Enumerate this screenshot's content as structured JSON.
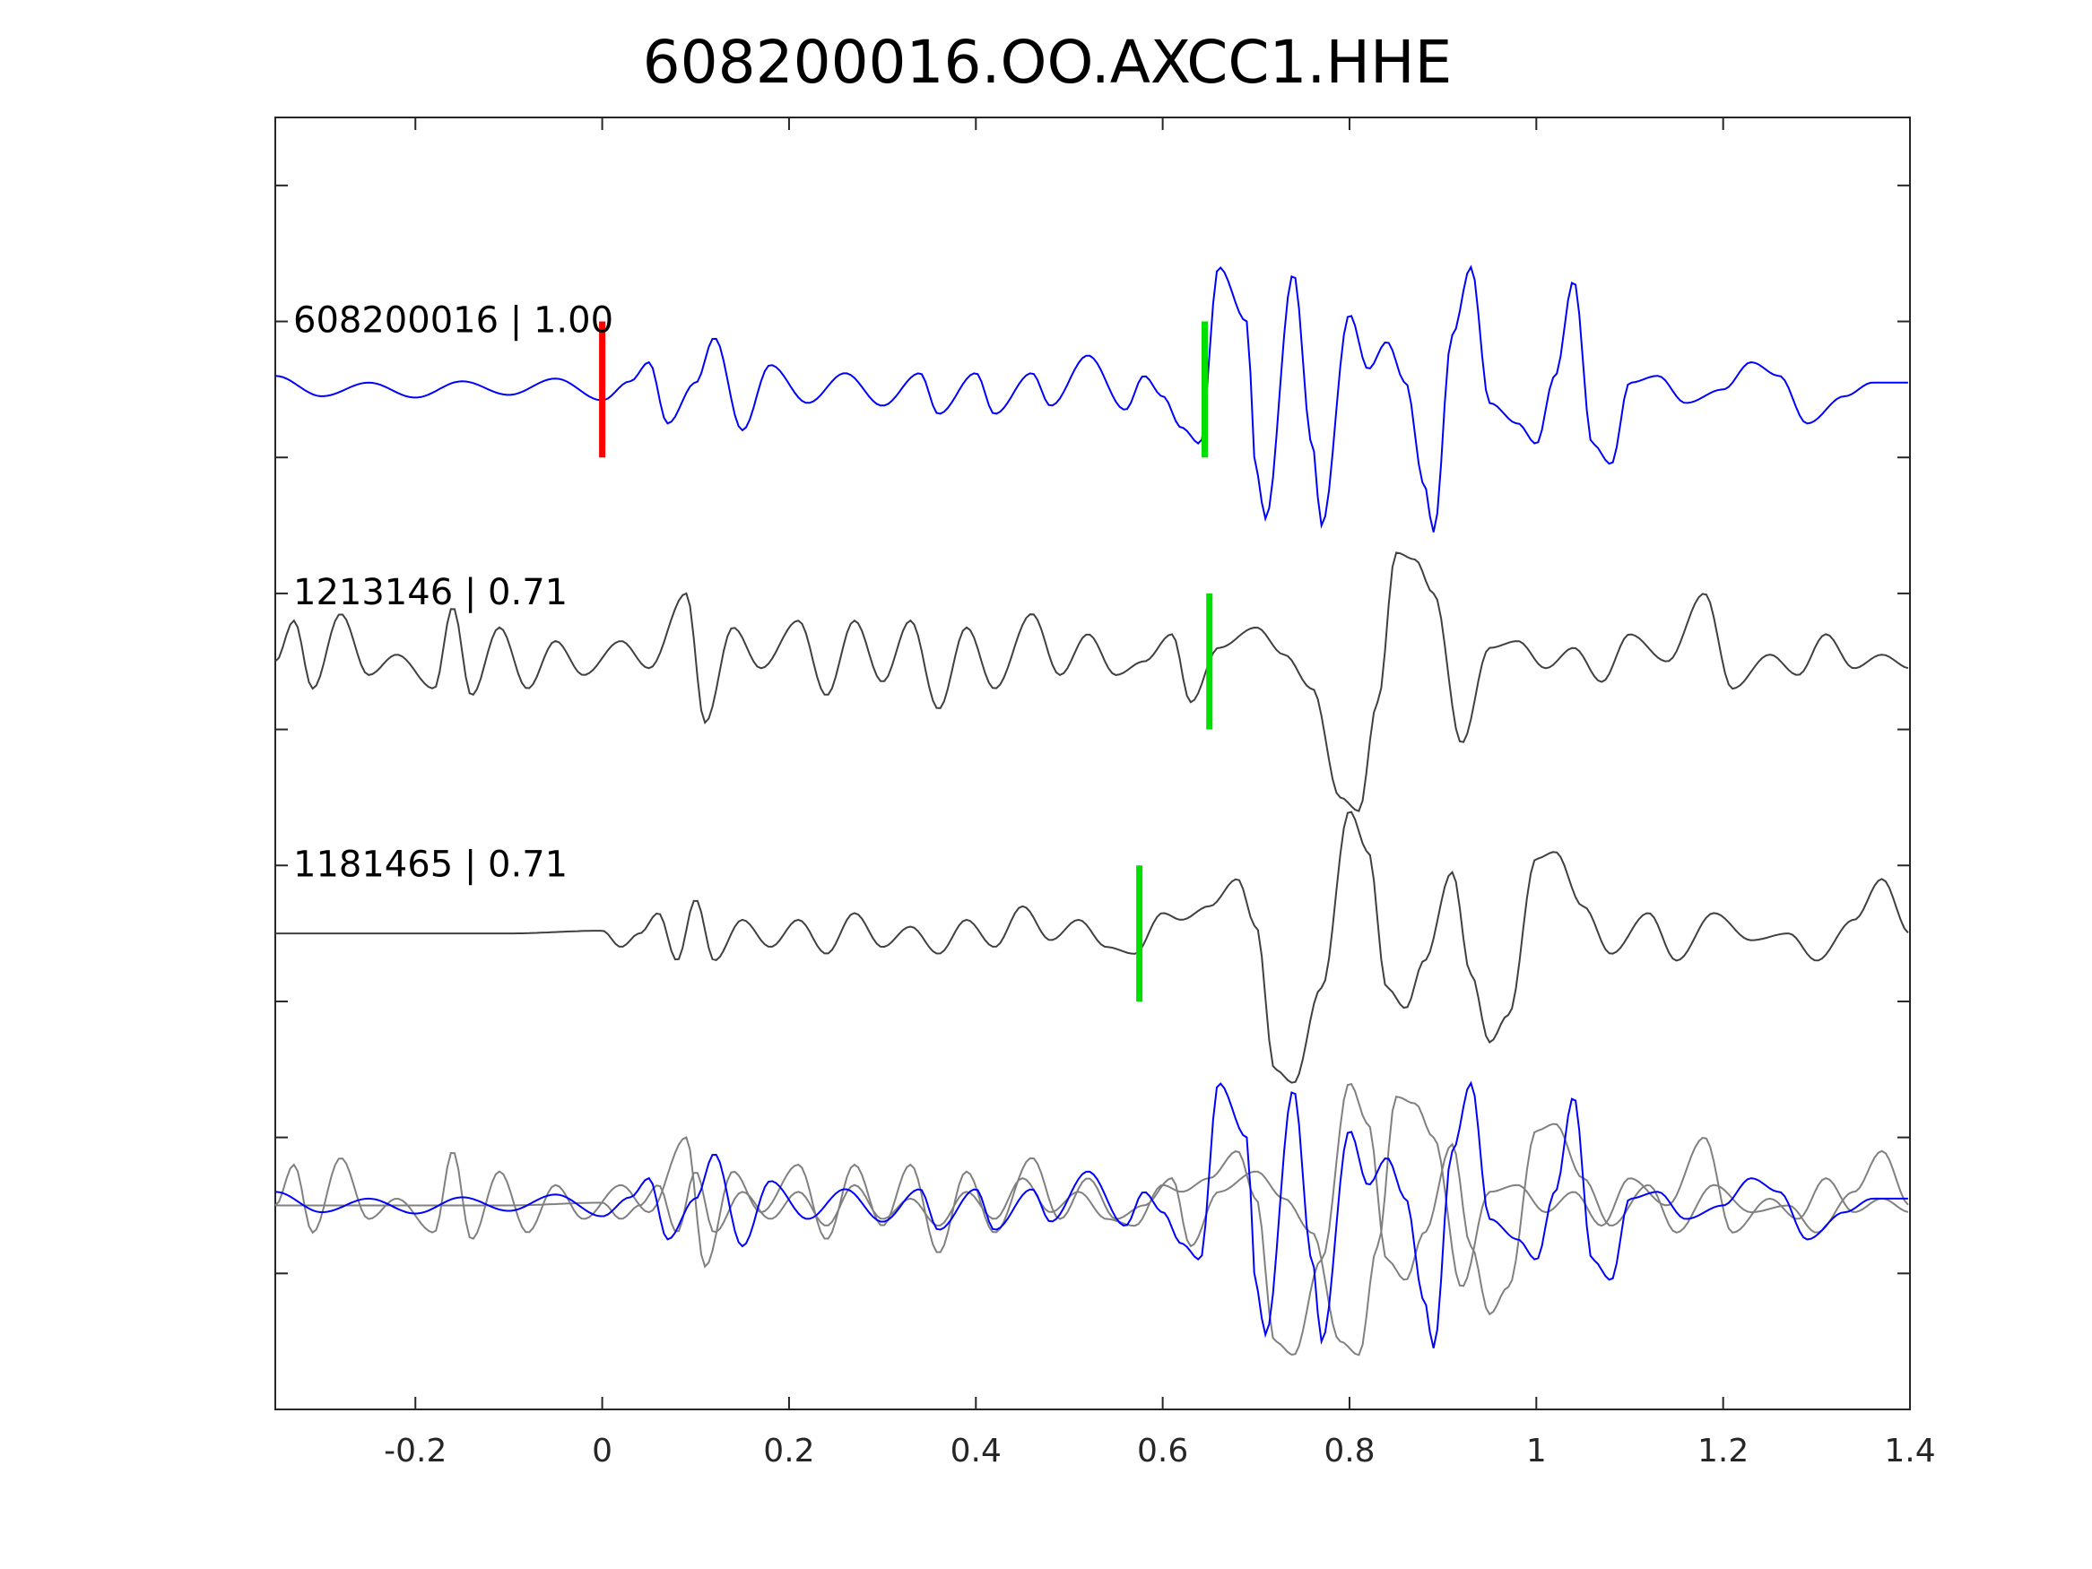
{
  "chart_data": {
    "type": "line",
    "title": "608200016.OO.AXCC1.HHE",
    "xlabel": "",
    "ylabel": "",
    "xlim": [
      -0.35,
      1.4
    ],
    "xticks": [
      -0.2,
      0,
      0.2,
      0.4,
      0.6,
      0.8,
      1,
      1.2,
      1.4
    ],
    "xtick_labels": [
      "-0.2",
      "0",
      "0.2",
      "0.4",
      "0.6",
      "0.8",
      "1",
      "1.2",
      "1.4"
    ],
    "ylim": [
      -0.5,
      9
    ],
    "yticks": [
      0.5,
      1.5,
      2.5,
      3.5,
      4.5,
      5.5,
      6.5,
      7.5,
      8.5
    ],
    "grid": false,
    "colors": {
      "template": "#0000ff",
      "match": "#404040",
      "overlay_match": "#808080",
      "origin_pick": "#ff0000",
      "phase_pick": "#00e000"
    },
    "traces": [
      {
        "label": "608200016 | 1.00",
        "offset": 7,
        "color": "template",
        "picks": [
          {
            "x": 0.0,
            "color": "origin_pick"
          },
          {
            "x": 0.645,
            "color": "phase_pick"
          }
        ],
        "points": [
          [
            -0.35,
            0.1
          ],
          [
            -0.3,
            -0.05
          ],
          [
            -0.25,
            0.05
          ],
          [
            -0.2,
            -0.06
          ],
          [
            -0.15,
            0.06
          ],
          [
            -0.1,
            -0.04
          ],
          [
            -0.05,
            0.08
          ],
          [
            0.0,
            -0.08
          ],
          [
            0.03,
            0.06
          ],
          [
            0.05,
            0.2
          ],
          [
            0.07,
            -0.25
          ],
          [
            0.1,
            0.05
          ],
          [
            0.12,
            0.38
          ],
          [
            0.15,
            -0.3
          ],
          [
            0.18,
            0.18
          ],
          [
            0.22,
            -0.1
          ],
          [
            0.26,
            0.12
          ],
          [
            0.3,
            -0.12
          ],
          [
            0.34,
            0.12
          ],
          [
            0.36,
            -0.18
          ],
          [
            0.4,
            0.12
          ],
          [
            0.42,
            -0.18
          ],
          [
            0.46,
            0.12
          ],
          [
            0.48,
            -0.12
          ],
          [
            0.52,
            0.25
          ],
          [
            0.56,
            -0.15
          ],
          [
            0.58,
            0.1
          ],
          [
            0.6,
            -0.05
          ],
          [
            0.62,
            -0.28
          ],
          [
            0.64,
            -0.4
          ],
          [
            0.66,
            0.9
          ],
          [
            0.69,
            0.5
          ],
          [
            0.7,
            -0.6
          ],
          [
            0.71,
            -0.95
          ],
          [
            0.74,
            0.85
          ],
          [
            0.76,
            -0.4
          ],
          [
            0.77,
            -1.0
          ],
          [
            0.8,
            0.55
          ],
          [
            0.82,
            0.15
          ],
          [
            0.84,
            0.35
          ],
          [
            0.86,
            0.05
          ],
          [
            0.88,
            -0.7
          ],
          [
            0.89,
            -1.05
          ],
          [
            0.91,
            0.4
          ],
          [
            0.93,
            0.9
          ],
          [
            0.95,
            -0.1
          ],
          [
            0.98,
            -0.25
          ],
          [
            1.0,
            -0.4
          ],
          [
            1.02,
            0.1
          ],
          [
            1.04,
            0.8
          ],
          [
            1.06,
            -0.4
          ],
          [
            1.08,
            -0.55
          ],
          [
            1.1,
            0.05
          ],
          [
            1.13,
            0.1
          ],
          [
            1.16,
            -0.1
          ],
          [
            1.2,
            0.0
          ],
          [
            1.23,
            0.2
          ],
          [
            1.26,
            0.1
          ],
          [
            1.29,
            -0.25
          ],
          [
            1.33,
            -0.05
          ],
          [
            1.36,
            0.05
          ],
          [
            1.4,
            0.05
          ]
        ]
      },
      {
        "label": "1213146 | 0.71",
        "offset": 5,
        "color": "match",
        "picks": [
          {
            "x": 0.65,
            "color": "phase_pick"
          }
        ],
        "points": [
          [
            -0.35,
            0.0
          ],
          [
            -0.33,
            0.3
          ],
          [
            -0.31,
            -0.2
          ],
          [
            -0.28,
            0.35
          ],
          [
            -0.25,
            -0.1
          ],
          [
            -0.22,
            0.05
          ],
          [
            -0.18,
            -0.2
          ],
          [
            -0.16,
            0.4
          ],
          [
            -0.14,
            -0.25
          ],
          [
            -0.11,
            0.25
          ],
          [
            -0.08,
            -0.2
          ],
          [
            -0.05,
            0.15
          ],
          [
            -0.02,
            -0.1
          ],
          [
            0.02,
            0.15
          ],
          [
            0.05,
            -0.05
          ],
          [
            0.09,
            0.5
          ],
          [
            0.11,
            -0.45
          ],
          [
            0.14,
            0.25
          ],
          [
            0.17,
            -0.05
          ],
          [
            0.21,
            0.3
          ],
          [
            0.24,
            -0.25
          ],
          [
            0.27,
            0.3
          ],
          [
            0.3,
            -0.15
          ],
          [
            0.33,
            0.3
          ],
          [
            0.36,
            -0.35
          ],
          [
            0.39,
            0.25
          ],
          [
            0.42,
            -0.2
          ],
          [
            0.46,
            0.35
          ],
          [
            0.49,
            -0.1
          ],
          [
            0.52,
            0.2
          ],
          [
            0.55,
            -0.1
          ],
          [
            0.58,
            0.0
          ],
          [
            0.61,
            0.2
          ],
          [
            0.63,
            -0.3
          ],
          [
            0.66,
            0.1
          ],
          [
            0.7,
            0.25
          ],
          [
            0.73,
            0.05
          ],
          [
            0.76,
            -0.2
          ],
          [
            0.79,
            -1.0
          ],
          [
            0.81,
            -1.1
          ],
          [
            0.83,
            -0.3
          ],
          [
            0.85,
            0.8
          ],
          [
            0.87,
            0.75
          ],
          [
            0.89,
            0.5
          ],
          [
            0.92,
            -0.6
          ],
          [
            0.95,
            0.1
          ],
          [
            0.98,
            0.15
          ],
          [
            1.01,
            -0.05
          ],
          [
            1.04,
            0.1
          ],
          [
            1.07,
            -0.15
          ],
          [
            1.1,
            0.2
          ],
          [
            1.14,
            0.0
          ],
          [
            1.18,
            0.5
          ],
          [
            1.21,
            -0.2
          ],
          [
            1.25,
            0.05
          ],
          [
            1.28,
            -0.1
          ],
          [
            1.31,
            0.2
          ],
          [
            1.34,
            -0.05
          ],
          [
            1.37,
            0.05
          ],
          [
            1.4,
            -0.05
          ]
        ]
      },
      {
        "label": "1181465 | 0.71",
        "offset": 3,
        "color": "match",
        "picks": [
          {
            "x": 0.575,
            "color": "phase_pick"
          }
        ],
        "points": [
          [
            -0.35,
            0.0
          ],
          [
            -0.2,
            0.0
          ],
          [
            -0.1,
            0.0
          ],
          [
            0.0,
            0.02
          ],
          [
            0.02,
            -0.1
          ],
          [
            0.04,
            0.0
          ],
          [
            0.06,
            0.15
          ],
          [
            0.08,
            -0.2
          ],
          [
            0.1,
            0.25
          ],
          [
            0.12,
            -0.2
          ],
          [
            0.15,
            0.1
          ],
          [
            0.18,
            -0.1
          ],
          [
            0.21,
            0.1
          ],
          [
            0.24,
            -0.15
          ],
          [
            0.27,
            0.15
          ],
          [
            0.3,
            -0.1
          ],
          [
            0.33,
            0.05
          ],
          [
            0.36,
            -0.15
          ],
          [
            0.39,
            0.1
          ],
          [
            0.42,
            -0.1
          ],
          [
            0.45,
            0.2
          ],
          [
            0.48,
            -0.05
          ],
          [
            0.51,
            0.1
          ],
          [
            0.54,
            -0.1
          ],
          [
            0.57,
            -0.15
          ],
          [
            0.6,
            0.15
          ],
          [
            0.62,
            0.1
          ],
          [
            0.65,
            0.2
          ],
          [
            0.68,
            0.4
          ],
          [
            0.7,
            0.05
          ],
          [
            0.72,
            -1.0
          ],
          [
            0.74,
            -1.1
          ],
          [
            0.77,
            -0.4
          ],
          [
            0.8,
            0.9
          ],
          [
            0.82,
            0.6
          ],
          [
            0.84,
            -0.4
          ],
          [
            0.86,
            -0.55
          ],
          [
            0.88,
            -0.2
          ],
          [
            0.91,
            0.45
          ],
          [
            0.93,
            -0.3
          ],
          [
            0.95,
            -0.8
          ],
          [
            0.97,
            -0.6
          ],
          [
            1.0,
            0.55
          ],
          [
            1.02,
            0.6
          ],
          [
            1.05,
            0.2
          ],
          [
            1.08,
            -0.15
          ],
          [
            1.12,
            0.15
          ],
          [
            1.15,
            -0.2
          ],
          [
            1.19,
            0.15
          ],
          [
            1.23,
            -0.05
          ],
          [
            1.27,
            0.0
          ],
          [
            1.3,
            -0.2
          ],
          [
            1.34,
            0.1
          ],
          [
            1.37,
            0.4
          ],
          [
            1.4,
            0.0
          ]
        ]
      }
    ],
    "overlay": {
      "offset": 1,
      "series": [
        {
          "source": 0,
          "color": "template"
        },
        {
          "source": 1,
          "color": "overlay_match"
        },
        {
          "source": 2,
          "color": "overlay_match"
        }
      ]
    }
  }
}
